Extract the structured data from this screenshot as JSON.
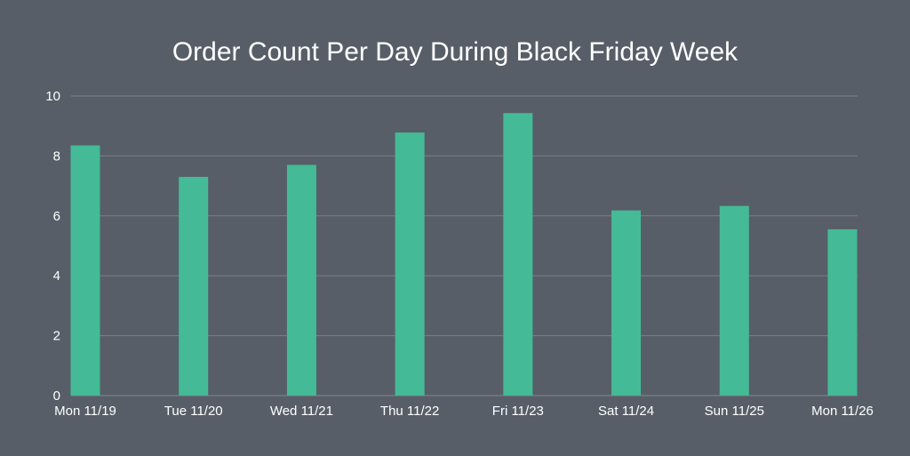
{
  "chart_data": {
    "type": "bar",
    "title": "Order Count Per Day During Black Friday Week",
    "xlabel": "",
    "ylabel": "",
    "categories": [
      "Mon 11/19",
      "Tue 11/20",
      "Wed 11/21",
      "Thu 11/22",
      "Fri 11/23",
      "Sat 11/24",
      "Sun 11/25",
      "Mon 11/26"
    ],
    "values": [
      8.35,
      7.3,
      7.7,
      8.78,
      9.43,
      6.18,
      6.33,
      5.55
    ],
    "ylim": [
      0,
      10
    ],
    "yticks": [
      "0",
      "2",
      "4",
      "6",
      "8",
      "10"
    ],
    "grid": true,
    "legend": "none",
    "colors": {
      "background": "#575e68",
      "bar": "#44bb96",
      "grid": "#7a8089",
      "text": "#ffffff"
    }
  }
}
